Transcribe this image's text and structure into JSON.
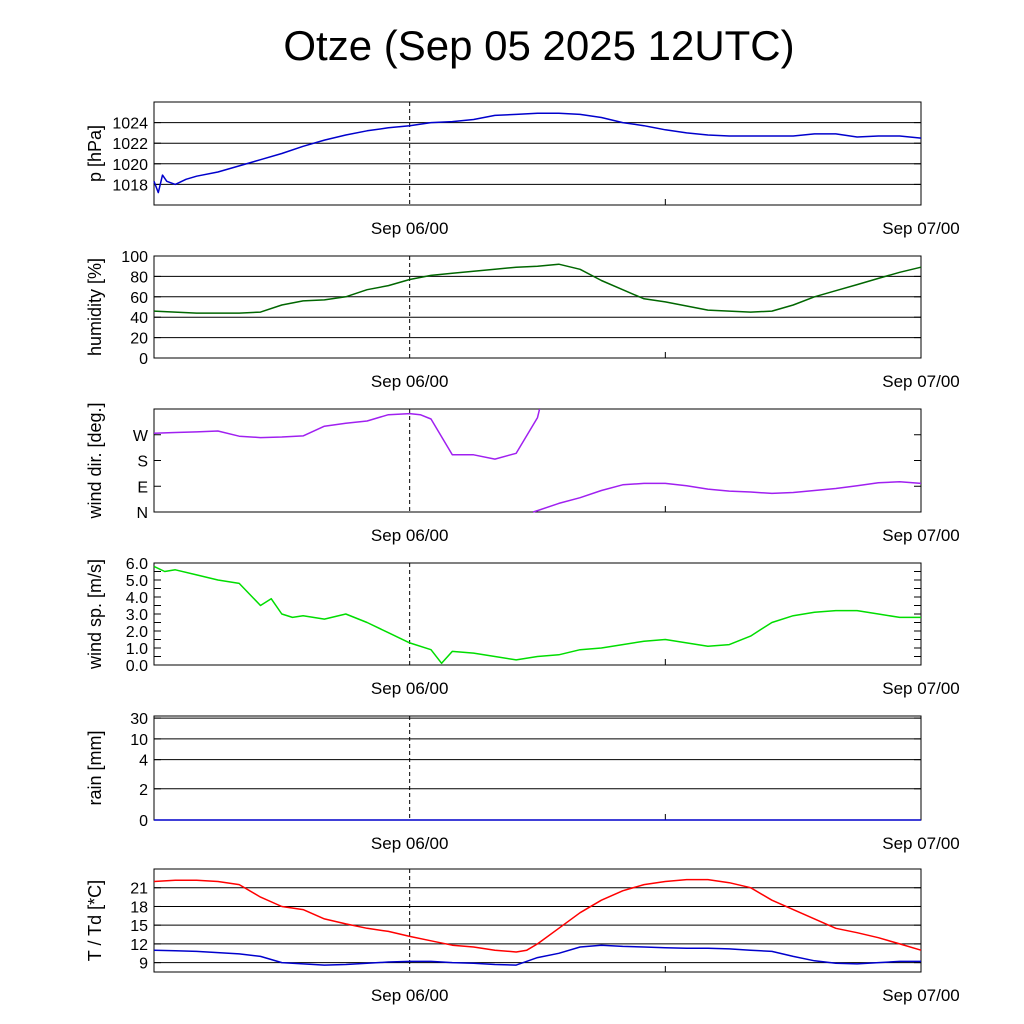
{
  "title": "Otze (Sep 05 2025 12UTC)",
  "chart_data": [
    {
      "id": "pressure",
      "type": "line",
      "ylabel": "p [hPa]",
      "color": "#0000cc",
      "ylim": [
        1016,
        1026
      ],
      "yticks": [
        1018,
        1020,
        1022,
        1024
      ],
      "ytick_labels": [
        "1018",
        "1020",
        "1022",
        "1024"
      ],
      "grid_y": [
        1018,
        1020,
        1022,
        1024
      ],
      "xtick_labels": [
        {
          "x": 12,
          "label": "Sep 06/00"
        },
        {
          "x": 36,
          "label": "Sep 07/00"
        }
      ],
      "xlim": [
        0,
        36
      ],
      "series": [
        {
          "x": [
            0,
            0.2,
            0.4,
            0.6,
            1,
            1.5,
            2,
            3,
            4,
            5,
            6,
            7,
            8,
            9,
            10,
            11,
            12,
            13,
            14,
            15,
            16,
            17,
            18,
            19,
            20,
            21,
            22,
            23,
            24,
            25,
            26,
            27,
            28,
            29,
            30,
            31,
            32,
            33,
            34,
            35,
            36
          ],
          "y": [
            1018.3,
            1017.2,
            1018.9,
            1018.3,
            1018.0,
            1018.5,
            1018.8,
            1019.2,
            1019.8,
            1020.4,
            1021.0,
            1021.7,
            1022.3,
            1022.8,
            1023.2,
            1023.5,
            1023.7,
            1024.0,
            1024.1,
            1024.3,
            1024.7,
            1024.8,
            1024.9,
            1024.9,
            1024.8,
            1024.5,
            1024.0,
            1023.7,
            1023.3,
            1023.0,
            1022.8,
            1022.7,
            1022.7,
            1022.7,
            1022.7,
            1022.9,
            1022.9,
            1022.6,
            1022.7,
            1022.7,
            1022.5
          ]
        }
      ]
    },
    {
      "id": "humidity",
      "type": "line",
      "ylabel": "humidity [%]",
      "color": "#006600",
      "ylim": [
        0,
        100
      ],
      "yticks": [
        0,
        20,
        40,
        60,
        80,
        100
      ],
      "ytick_labels": [
        "0",
        "20",
        "40",
        "60",
        "80",
        "100"
      ],
      "grid_y": [
        0,
        20,
        40,
        60,
        80
      ],
      "xtick_labels": [
        {
          "x": 12,
          "label": "Sep 06/00"
        },
        {
          "x": 36,
          "label": "Sep 07/00"
        }
      ],
      "xlim": [
        0,
        36
      ],
      "series": [
        {
          "x": [
            0,
            1,
            2,
            3,
            4,
            5,
            6,
            7,
            8,
            9,
            10,
            11,
            12,
            13,
            14,
            15,
            16,
            17,
            18,
            19,
            20,
            21,
            22,
            23,
            24,
            25,
            26,
            27,
            28,
            29,
            30,
            31,
            32,
            33,
            34,
            35,
            36
          ],
          "y": [
            46,
            45,
            44,
            44,
            44,
            45,
            52,
            56,
            57,
            60,
            67,
            71,
            77,
            81,
            83,
            85,
            87,
            89,
            90,
            92,
            87,
            76,
            67,
            58,
            55,
            51,
            47,
            46,
            45,
            46,
            52,
            60,
            66,
            72,
            78,
            84,
            89
          ]
        }
      ]
    },
    {
      "id": "wind_dir",
      "type": "line",
      "ylabel": "wind dir. [deg.]",
      "color": "#a020f0",
      "ylim": [
        0,
        360
      ],
      "yticks": [
        0,
        90,
        180,
        270
      ],
      "ytick_labels": [
        "N",
        "E",
        "S",
        "W"
      ],
      "grid_y": [],
      "xtick_labels": [
        {
          "x": 12,
          "label": "Sep 06/00"
        },
        {
          "x": 36,
          "label": "Sep 07/00"
        }
      ],
      "xlim": [
        0,
        36
      ],
      "series": [
        {
          "x": [
            0,
            1,
            2,
            3,
            4,
            5,
            6,
            7,
            8,
            9,
            10,
            11,
            12,
            12.5,
            13,
            14,
            15,
            16,
            17,
            18,
            18.1
          ],
          "y": [
            275,
            278,
            280,
            283,
            265,
            260,
            262,
            266,
            300,
            310,
            318,
            340,
            344,
            340,
            325,
            200,
            200,
            185,
            205,
            330,
            360
          ]
        },
        {
          "x": [
            17.8,
            18,
            19,
            20,
            21,
            22,
            23,
            24,
            25,
            26,
            27,
            28,
            29,
            30,
            31,
            32,
            33,
            34,
            35,
            36
          ],
          "y": [
            0,
            5,
            30,
            50,
            75,
            95,
            100,
            100,
            92,
            80,
            73,
            70,
            65,
            68,
            75,
            82,
            92,
            102,
            106,
            100
          ]
        }
      ]
    },
    {
      "id": "wind_speed",
      "type": "line",
      "ylabel": "wind sp. [m/s]",
      "color": "#00dd00",
      "ylim": [
        0,
        6
      ],
      "yticks": [
        0,
        0.5,
        1,
        1.5,
        2,
        2.5,
        3,
        3.5,
        4,
        4.5,
        5,
        5.5,
        6
      ],
      "ytick_labels": [
        "0.0",
        "",
        "1.0",
        "",
        "2.0",
        "",
        "3.0",
        "",
        "4.0",
        "",
        "5.0",
        "",
        "6.0"
      ],
      "grid_y": [],
      "xtick_labels": [
        {
          "x": 12,
          "label": "Sep 06/00"
        },
        {
          "x": 36,
          "label": "Sep 07/00"
        }
      ],
      "xlim": [
        0,
        36
      ],
      "series": [
        {
          "x": [
            0,
            0.5,
            1,
            2,
            3,
            4,
            5,
            5.5,
            6,
            6.5,
            7,
            8,
            9,
            10,
            11,
            12,
            13,
            13.5,
            14,
            15,
            16,
            17,
            18,
            19,
            20,
            21,
            22,
            23,
            24,
            25,
            26,
            27,
            28,
            28.5,
            29,
            30,
            31,
            32,
            33,
            34,
            35,
            36
          ],
          "y": [
            5.8,
            5.5,
            5.6,
            5.3,
            5.0,
            4.8,
            3.5,
            3.9,
            3.0,
            2.8,
            2.9,
            2.7,
            3.0,
            2.5,
            1.9,
            1.3,
            0.9,
            0.1,
            0.8,
            0.7,
            0.5,
            0.3,
            0.5,
            0.6,
            0.9,
            1.0,
            1.2,
            1.4,
            1.5,
            1.3,
            1.1,
            1.2,
            1.7,
            2.1,
            2.5,
            2.9,
            3.1,
            3.2,
            3.2,
            3.0,
            2.8,
            2.8
          ]
        }
      ]
    },
    {
      "id": "rain",
      "type": "line",
      "ylabel": "rain [mm]",
      "color": "#0000cc",
      "ylim": [
        0,
        30
      ],
      "scale": "custom",
      "yticks": [
        0,
        2,
        4,
        10,
        30
      ],
      "ytick_labels": [
        "0",
        "2",
        "4",
        "10",
        "30"
      ],
      "grid_y": [
        2,
        4,
        10,
        30
      ],
      "xtick_labels": [
        {
          "x": 12,
          "label": "Sep 06/00"
        },
        {
          "x": 36,
          "label": "Sep 07/00"
        }
      ],
      "xlim": [
        0,
        36
      ],
      "series": [
        {
          "x": [
            0,
            36
          ],
          "y": [
            0,
            0
          ]
        }
      ]
    },
    {
      "id": "temperature",
      "type": "line",
      "ylabel": "T / Td [*C]",
      "color": "#ff0000",
      "ylim": [
        7.5,
        24
      ],
      "yticks": [
        9,
        12,
        15,
        18,
        21
      ],
      "ytick_labels": [
        "9",
        "12",
        "15",
        "18",
        "21"
      ],
      "grid_y": [
        9,
        12,
        15,
        18,
        21
      ],
      "xtick_labels": [
        {
          "x": 12,
          "label": "Sep 06/00"
        },
        {
          "x": 36,
          "label": "Sep 07/00"
        }
      ],
      "xlim": [
        0,
        36
      ],
      "series": [
        {
          "name": "T",
          "color": "#ff0000",
          "x": [
            0,
            1,
            2,
            3,
            4,
            5,
            6,
            7,
            8,
            9,
            10,
            11,
            12,
            13,
            14,
            15,
            16,
            17,
            17.5,
            18,
            19,
            20,
            21,
            22,
            23,
            24,
            25,
            26,
            27,
            28,
            29,
            30,
            31,
            32,
            33,
            34,
            35,
            36
          ],
          "y": [
            22.0,
            22.2,
            22.2,
            22.0,
            21.5,
            19.5,
            18.0,
            17.5,
            16.0,
            15.2,
            14.5,
            14.0,
            13.2,
            12.5,
            11.8,
            11.5,
            11.0,
            10.7,
            11.0,
            12.0,
            14.5,
            17.0,
            19.0,
            20.5,
            21.5,
            22.0,
            22.3,
            22.3,
            21.8,
            21.0,
            19.0,
            17.5,
            16.0,
            14.5,
            13.8,
            13.0,
            12.0,
            11.0
          ]
        },
        {
          "name": "Td",
          "color": "#0000cc",
          "x": [
            0,
            1,
            2,
            3,
            4,
            5,
            6,
            7,
            8,
            9,
            10,
            11,
            12,
            13,
            14,
            15,
            16,
            17,
            18,
            19,
            20,
            21,
            22,
            23,
            24,
            25,
            26,
            27,
            28,
            29,
            30,
            31,
            32,
            33,
            34,
            35,
            36
          ],
          "y": [
            11.0,
            10.9,
            10.8,
            10.6,
            10.4,
            10.0,
            9.0,
            8.8,
            8.6,
            8.7,
            8.9,
            9.1,
            9.2,
            9.2,
            9.0,
            8.9,
            8.7,
            8.6,
            9.8,
            10.5,
            11.5,
            11.8,
            11.6,
            11.5,
            11.4,
            11.3,
            11.3,
            11.2,
            11.0,
            10.8,
            10.0,
            9.3,
            8.9,
            8.8,
            9.0,
            9.2,
            9.2
          ]
        }
      ]
    }
  ]
}
